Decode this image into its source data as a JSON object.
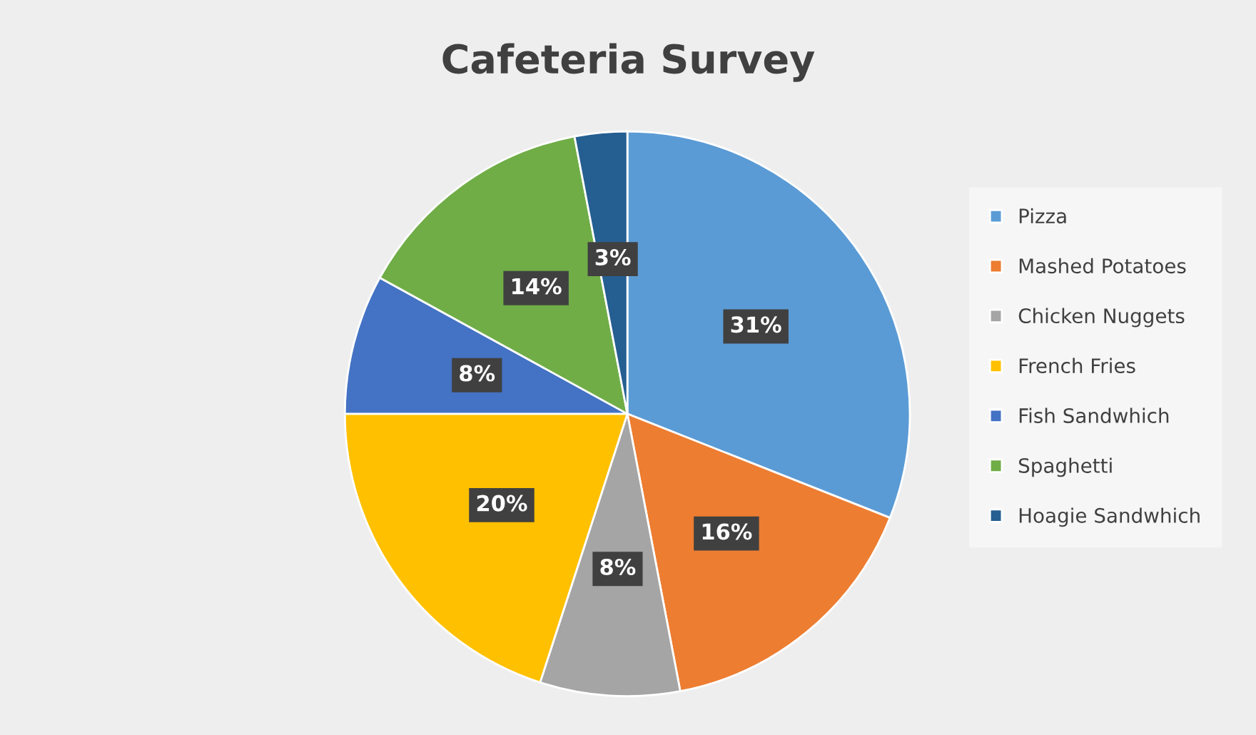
{
  "chart_data": {
    "type": "pie",
    "title": "Cafeteria Survey",
    "categories": [
      "Pizza",
      "Mashed Potatoes",
      "Chicken Nuggets",
      "French Fries",
      "Fish Sandwhich",
      "Spaghetti",
      "Hoagie Sandwhich"
    ],
    "values": [
      31,
      16,
      8,
      20,
      8,
      14,
      3
    ],
    "colors": [
      "#5b9bd5",
      "#ed7d31",
      "#a5a5a5",
      "#ffc000",
      "#4472c4",
      "#70ad47",
      "#255e91"
    ],
    "value_labels": [
      "31%",
      "16%",
      "8%",
      "20%",
      "8%",
      "14%",
      "3%"
    ],
    "legend": "right"
  }
}
